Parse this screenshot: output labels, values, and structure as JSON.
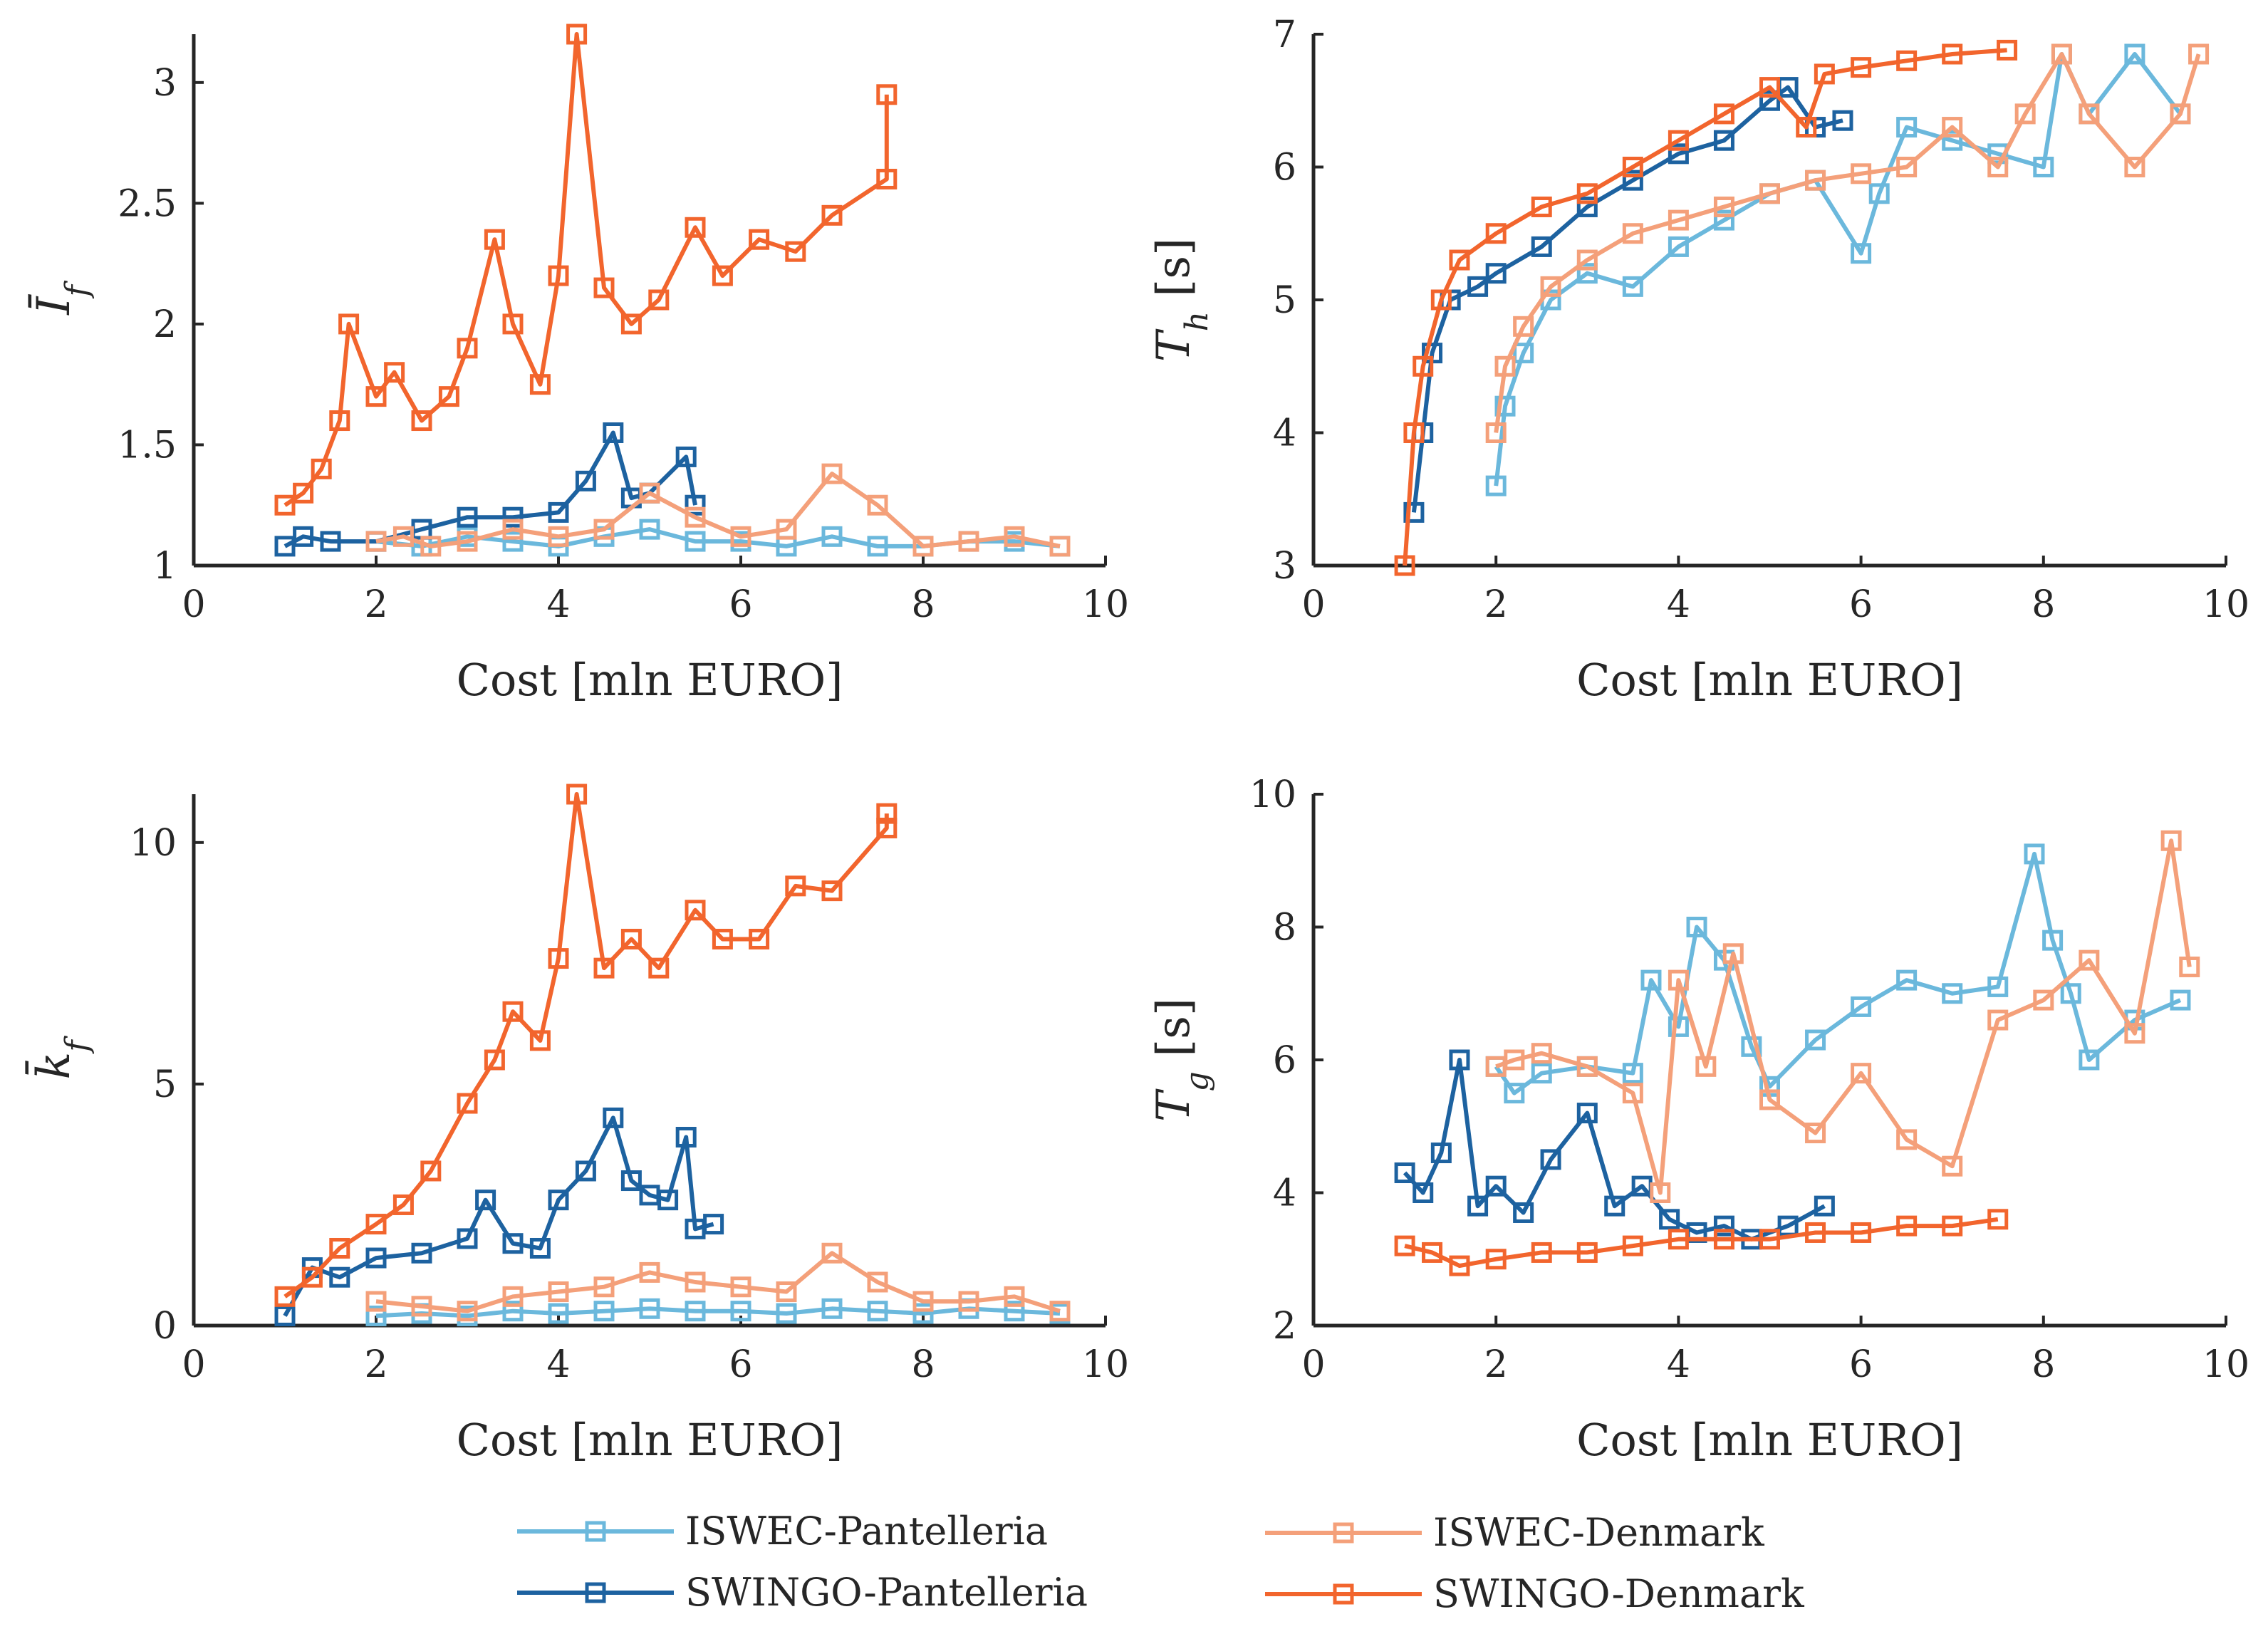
{
  "colors": {
    "ISWEC-Pantelleria": "#6bb8dc",
    "SWINGO-Pantelleria": "#1d62a0",
    "ISWEC-Denmark": "#f4a07a",
    "SWINGO-Denmark": "#f2652d"
  },
  "legend": {
    "placement": "bottom",
    "entries": [
      "ISWEC-Pantelleria",
      "SWINGO-Pantelleria",
      "ISWEC-Denmark",
      "SWINGO-Denmark"
    ]
  },
  "chart_data": [
    {
      "type": "line",
      "xlabel": "Cost [mln EURO]",
      "ylabel": "Ī_f",
      "xlim": [
        0,
        10
      ],
      "ylim": [
        1,
        3.2
      ],
      "xticks": [
        "0",
        "2",
        "4",
        "6",
        "8",
        "10"
      ],
      "yticks": [
        "1",
        "1.5",
        "2",
        "2.5",
        "3"
      ],
      "ytick_values": [
        1,
        1.5,
        2,
        2.5,
        3
      ],
      "series": [
        {
          "name": "ISWEC-Pantelleria",
          "x": [
            2.0,
            2.5,
            3.0,
            3.5,
            4.0,
            4.5,
            5.0,
            5.5,
            6.0,
            6.5,
            7.0,
            7.5,
            8.0,
            8.5,
            9.0,
            9.5
          ],
          "y": [
            1.1,
            1.08,
            1.12,
            1.1,
            1.08,
            1.12,
            1.15,
            1.1,
            1.1,
            1.08,
            1.12,
            1.08,
            1.08,
            1.1,
            1.1,
            1.08
          ]
        },
        {
          "name": "SWINGO-Pantelleria",
          "x": [
            1.0,
            1.2,
            1.5,
            2.0,
            2.5,
            3.0,
            3.5,
            4.0,
            4.3,
            4.6,
            4.8,
            5.0,
            5.4,
            5.5
          ],
          "y": [
            1.08,
            1.12,
            1.1,
            1.1,
            1.15,
            1.2,
            1.2,
            1.22,
            1.35,
            1.55,
            1.28,
            1.3,
            1.45,
            1.25
          ]
        },
        {
          "name": "ISWEC-Denmark",
          "x": [
            2.0,
            2.3,
            2.6,
            3.0,
            3.5,
            4.0,
            4.5,
            5.0,
            5.5,
            6.0,
            6.5,
            7.0,
            7.5,
            8.0,
            8.5,
            9.0,
            9.5
          ],
          "y": [
            1.1,
            1.12,
            1.08,
            1.1,
            1.15,
            1.12,
            1.15,
            1.3,
            1.2,
            1.12,
            1.15,
            1.38,
            1.25,
            1.08,
            1.1,
            1.12,
            1.08
          ]
        },
        {
          "name": "SWINGO-Denmark",
          "x": [
            1.0,
            1.2,
            1.4,
            1.6,
            1.7,
            2.0,
            2.2,
            2.5,
            2.8,
            3.0,
            3.3,
            3.5,
            3.8,
            4.0,
            4.2,
            4.5,
            4.8,
            5.1,
            5.5,
            5.8,
            6.2,
            6.6,
            7.0,
            7.6,
            7.6
          ],
          "y": [
            1.25,
            1.3,
            1.4,
            1.6,
            2.0,
            1.7,
            1.8,
            1.6,
            1.7,
            1.9,
            2.35,
            2.0,
            1.75,
            2.2,
            3.2,
            2.15,
            2.0,
            2.1,
            2.4,
            2.2,
            2.35,
            2.3,
            2.45,
            2.6,
            2.95
          ]
        }
      ]
    },
    {
      "type": "line",
      "xlabel": "Cost [mln EURO]",
      "ylabel": "T_h [s]",
      "xlim": [
        0,
        10
      ],
      "ylim": [
        3,
        7
      ],
      "xticks": [
        "0",
        "2",
        "4",
        "6",
        "8",
        "10"
      ],
      "yticks": [
        "3",
        "4",
        "5",
        "6",
        "7"
      ],
      "ytick_values": [
        3,
        4,
        5,
        6,
        7
      ],
      "series": [
        {
          "name": "ISWEC-Pantelleria",
          "x": [
            2.0,
            2.1,
            2.3,
            2.6,
            3.0,
            3.5,
            4.0,
            4.5,
            5.0,
            5.5,
            6.0,
            6.2,
            6.5,
            7.0,
            7.5,
            8.0,
            8.2,
            8.5,
            9.0,
            9.5
          ],
          "y": [
            3.6,
            4.2,
            4.6,
            5.0,
            5.2,
            5.1,
            5.4,
            5.6,
            5.8,
            5.9,
            5.35,
            5.8,
            6.3,
            6.2,
            6.1,
            6.0,
            6.85,
            6.4,
            6.85,
            6.4
          ]
        },
        {
          "name": "SWINGO-Pantelleria",
          "x": [
            1.1,
            1.2,
            1.3,
            1.5,
            1.8,
            2.0,
            2.5,
            3.0,
            3.5,
            4.0,
            4.5,
            5.0,
            5.2,
            5.5,
            5.8
          ],
          "y": [
            3.4,
            4.0,
            4.6,
            5.0,
            5.1,
            5.2,
            5.4,
            5.7,
            5.9,
            6.1,
            6.2,
            6.5,
            6.6,
            6.3,
            6.35
          ]
        },
        {
          "name": "ISWEC-Denmark",
          "x": [
            2.0,
            2.1,
            2.3,
            2.6,
            3.0,
            3.5,
            4.0,
            4.5,
            5.0,
            5.5,
            6.0,
            6.5,
            7.0,
            7.5,
            7.8,
            8.2,
            8.5,
            9.0,
            9.5,
            9.7
          ],
          "y": [
            4.0,
            4.5,
            4.8,
            5.1,
            5.3,
            5.5,
            5.6,
            5.7,
            5.8,
            5.9,
            5.95,
            6.0,
            6.3,
            6.0,
            6.4,
            6.85,
            6.4,
            6.0,
            6.4,
            6.85
          ]
        },
        {
          "name": "SWINGO-Denmark",
          "x": [
            1.0,
            1.1,
            1.2,
            1.4,
            1.6,
            2.0,
            2.5,
            3.0,
            3.5,
            4.0,
            4.5,
            5.0,
            5.4,
            5.6,
            6.0,
            6.5,
            7.0,
            7.6
          ],
          "y": [
            3.0,
            4.0,
            4.5,
            5.0,
            5.3,
            5.5,
            5.7,
            5.8,
            6.0,
            6.2,
            6.4,
            6.6,
            6.3,
            6.7,
            6.75,
            6.8,
            6.85,
            6.88
          ]
        }
      ]
    },
    {
      "type": "line",
      "xlabel": "Cost [mln EURO]",
      "ylabel": "k̄_f",
      "xlim": [
        0,
        10
      ],
      "ylim": [
        0,
        11
      ],
      "xticks": [
        "0",
        "2",
        "4",
        "6",
        "8",
        "10"
      ],
      "yticks": [
        "0",
        "5",
        "10"
      ],
      "ytick_values": [
        0,
        5,
        10
      ],
      "series": [
        {
          "name": "ISWEC-Pantelleria",
          "x": [
            2.0,
            2.5,
            3.0,
            3.5,
            4.0,
            4.5,
            5.0,
            5.5,
            6.0,
            6.5,
            7.0,
            7.5,
            8.0,
            8.5,
            9.0,
            9.5
          ],
          "y": [
            0.2,
            0.25,
            0.2,
            0.3,
            0.25,
            0.3,
            0.35,
            0.3,
            0.3,
            0.25,
            0.35,
            0.3,
            0.25,
            0.35,
            0.3,
            0.25
          ]
        },
        {
          "name": "SWINGO-Pantelleria",
          "x": [
            1.0,
            1.3,
            1.6,
            2.0,
            2.5,
            3.0,
            3.2,
            3.5,
            3.8,
            4.0,
            4.3,
            4.6,
            4.8,
            5.0,
            5.2,
            5.4,
            5.5,
            5.7
          ],
          "y": [
            0.2,
            1.2,
            1.0,
            1.4,
            1.5,
            1.8,
            2.6,
            1.7,
            1.6,
            2.6,
            3.2,
            4.3,
            3.0,
            2.7,
            2.6,
            3.9,
            2.0,
            2.1
          ]
        },
        {
          "name": "ISWEC-Denmark",
          "x": [
            2.0,
            2.5,
            3.0,
            3.5,
            4.0,
            4.5,
            5.0,
            5.5,
            6.0,
            6.5,
            7.0,
            7.5,
            8.0,
            8.5,
            9.0,
            9.5
          ],
          "y": [
            0.5,
            0.4,
            0.3,
            0.6,
            0.7,
            0.8,
            1.1,
            0.9,
            0.8,
            0.7,
            1.5,
            0.9,
            0.5,
            0.5,
            0.6,
            0.3
          ]
        },
        {
          "name": "SWINGO-Denmark",
          "x": [
            1.0,
            1.3,
            1.6,
            2.0,
            2.3,
            2.6,
            3.0,
            3.3,
            3.5,
            3.8,
            4.0,
            4.2,
            4.5,
            4.8,
            5.1,
            5.5,
            5.8,
            6.2,
            6.6,
            7.0,
            7.6,
            7.6
          ],
          "y": [
            0.6,
            1.0,
            1.6,
            2.1,
            2.5,
            3.2,
            4.6,
            5.5,
            6.5,
            5.9,
            7.6,
            11.0,
            7.4,
            8.0,
            7.4,
            8.6,
            8.0,
            8.0,
            9.1,
            9.0,
            10.3,
            10.6
          ]
        }
      ]
    },
    {
      "type": "line",
      "xlabel": "Cost [mln EURO]",
      "ylabel": "T_g [s]",
      "xlim": [
        0,
        10
      ],
      "ylim": [
        2,
        10
      ],
      "xticks": [
        "0",
        "2",
        "4",
        "6",
        "8",
        "10"
      ],
      "yticks": [
        "2",
        "4",
        "6",
        "8",
        "10"
      ],
      "ytick_values": [
        2,
        4,
        6,
        8,
        10
      ],
      "series": [
        {
          "name": "ISWEC-Pantelleria",
          "x": [
            2.0,
            2.2,
            2.5,
            3.0,
            3.5,
            3.7,
            4.0,
            4.2,
            4.5,
            4.8,
            5.0,
            5.5,
            6.0,
            6.5,
            7.0,
            7.5,
            7.9,
            8.1,
            8.3,
            8.5,
            9.0,
            9.5
          ],
          "y": [
            5.9,
            5.5,
            5.8,
            5.9,
            5.8,
            7.2,
            6.5,
            8.0,
            7.5,
            6.2,
            5.6,
            6.3,
            6.8,
            7.2,
            7.0,
            7.1,
            9.1,
            7.8,
            7.0,
            6.0,
            6.6,
            6.9
          ]
        },
        {
          "name": "SWINGO-Pantelleria",
          "x": [
            1.0,
            1.2,
            1.4,
            1.6,
            1.8,
            2.0,
            2.3,
            2.6,
            3.0,
            3.3,
            3.6,
            3.9,
            4.2,
            4.5,
            4.8,
            5.2,
            5.6
          ],
          "y": [
            4.3,
            4.0,
            4.6,
            6.0,
            3.8,
            4.1,
            3.7,
            4.5,
            5.2,
            3.8,
            4.1,
            3.6,
            3.4,
            3.5,
            3.3,
            3.5,
            3.8
          ]
        },
        {
          "name": "ISWEC-Denmark",
          "x": [
            2.0,
            2.2,
            2.5,
            3.0,
            3.5,
            3.8,
            4.0,
            4.3,
            4.6,
            5.0,
            5.5,
            6.0,
            6.5,
            7.0,
            7.5,
            8.0,
            8.5,
            9.0,
            9.4,
            9.6
          ],
          "y": [
            5.9,
            6.0,
            6.1,
            5.9,
            5.5,
            4.0,
            7.2,
            5.9,
            7.6,
            5.4,
            4.9,
            5.8,
            4.8,
            4.4,
            6.6,
            6.9,
            7.5,
            6.4,
            9.3,
            7.4
          ]
        },
        {
          "name": "SWINGO-Denmark",
          "x": [
            1.0,
            1.3,
            1.6,
            2.0,
            2.5,
            3.0,
            3.5,
            4.0,
            4.5,
            5.0,
            5.5,
            6.0,
            6.5,
            7.0,
            7.5
          ],
          "y": [
            3.2,
            3.1,
            2.9,
            3.0,
            3.1,
            3.1,
            3.2,
            3.3,
            3.3,
            3.3,
            3.4,
            3.4,
            3.5,
            3.5,
            3.6
          ]
        }
      ]
    }
  ]
}
